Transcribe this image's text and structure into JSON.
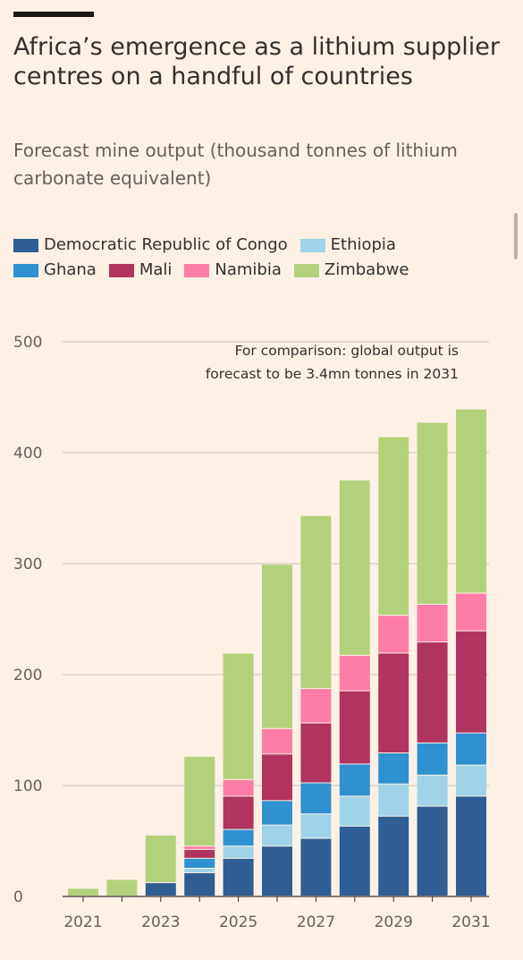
{
  "title": "Africa’s emergence as a lithium supplier centres on a handful of countries",
  "subtitle": "Forecast mine output (thousand tonnes of lithium carbonate equivalent)",
  "chart_data": {
    "type": "bar",
    "stacked": true,
    "x": [
      2021,
      2022,
      2023,
      2024,
      2025,
      2026,
      2027,
      2028,
      2029,
      2030,
      2031
    ],
    "x_tick_labels": [
      "2021",
      "2023",
      "2025",
      "2027",
      "2029",
      "2031"
    ],
    "ylim": [
      0,
      500
    ],
    "y_ticks": [
      0,
      100,
      200,
      300,
      400,
      500
    ],
    "grid": true,
    "legend_position": "top",
    "annotation": [
      "For comparison: global output is",
      "forecast to be 3.4mn tonnes in 2031"
    ],
    "series": [
      {
        "name": "Democratic Republic of Congo",
        "color": "#2e5e93",
        "values": [
          0,
          0,
          12,
          21,
          34,
          45,
          52,
          63,
          72,
          81,
          90
        ]
      },
      {
        "name": "Ethiopia",
        "color": "#9fd4e8",
        "values": [
          0,
          0,
          0,
          4,
          11,
          19,
          22,
          27,
          29,
          28,
          28
        ]
      },
      {
        "name": "Ghana",
        "color": "#2f91d0",
        "values": [
          0,
          0,
          0,
          9,
          15,
          22,
          28,
          29,
          28,
          29,
          29
        ]
      },
      {
        "name": "Mali",
        "color": "#b0345f",
        "values": [
          0,
          0,
          0,
          8,
          30,
          42,
          54,
          66,
          90,
          91,
          92
        ]
      },
      {
        "name": "Namibia",
        "color": "#fd7da8",
        "values": [
          0,
          0,
          0,
          3,
          15,
          23,
          31,
          32,
          34,
          34,
          34
        ]
      },
      {
        "name": "Zimbabwe",
        "color": "#b3d17b",
        "values": [
          7,
          15,
          43,
          81,
          114,
          148,
          156,
          158,
          161,
          164,
          166
        ]
      }
    ]
  }
}
